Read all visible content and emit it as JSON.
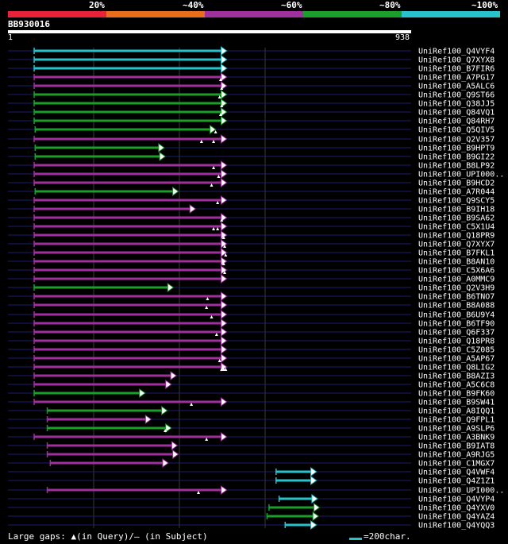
{
  "legend": {
    "labels": [
      "20%",
      "~40%",
      "~60%",
      "~80%",
      "~100%"
    ],
    "colors": [
      "#e8223b",
      "#e86e1c",
      "#a0309e",
      "#1b9e2a",
      "#27c2cc"
    ]
  },
  "query": {
    "id": "BB930016",
    "start": "1",
    "end": "938"
  },
  "footer": {
    "gaps_text": "Large gaps: ▲(in Query)/– (in Subject)",
    "scale_text": "=200char."
  },
  "hits": [
    {
      "label": "UniRef100_Q4VYF4",
      "s": 130,
      "e": 1085,
      "c": "c",
      "g": []
    },
    {
      "label": "UniRef100_Q7XYX8",
      "s": 130,
      "e": 1085,
      "c": "c",
      "g": []
    },
    {
      "label": "UniRef100_B7FIR6",
      "s": 130,
      "e": 1085,
      "c": "c",
      "g": []
    },
    {
      "label": "UniRef100_A7PG17",
      "s": 130,
      "e": 1085,
      "c": "p",
      "g": [
        1055
      ]
    },
    {
      "label": "UniRef100_A5ALC6",
      "s": 130,
      "e": 1085,
      "c": "p",
      "g": [
        1060
      ]
    },
    {
      "label": "UniRef100_Q9ST66",
      "s": 130,
      "e": 1085,
      "c": "g",
      "g": [
        1050
      ]
    },
    {
      "label": "UniRef100_Q38JJ5",
      "s": 130,
      "e": 1085,
      "c": "g",
      "g": [
        1060
      ]
    },
    {
      "label": "UniRef100_Q84VQ1",
      "s": 130,
      "e": 1085,
      "c": "g",
      "g": [
        1055
      ]
    },
    {
      "label": "UniRef100_Q84RH7",
      "s": 130,
      "e": 1085,
      "c": "g",
      "g": []
    },
    {
      "label": "UniRef100_Q5QIV5",
      "s": 135,
      "e": 1030,
      "c": "g",
      "g": [
        1030
      ]
    },
    {
      "label": "UniRef100_Q2V357",
      "s": 130,
      "e": 1085,
      "c": "p",
      "g": [
        960,
        1020
      ]
    },
    {
      "label": "UniRef100_B9HPT9",
      "s": 135,
      "e": 775,
      "c": "g",
      "g": []
    },
    {
      "label": "UniRef100_B9GI22",
      "s": 135,
      "e": 780,
      "c": "g",
      "g": []
    },
    {
      "label": "UniRef100_B8LP92",
      "s": 130,
      "e": 1085,
      "c": "p",
      "g": [
        1020
      ]
    },
    {
      "label": "UniRef100_UPI000..",
      "s": 130,
      "e": 1085,
      "c": "p",
      "g": [
        1045
      ]
    },
    {
      "label": "UniRef100_B9HCD2",
      "s": 130,
      "e": 1085,
      "c": "p",
      "g": [
        1010
      ]
    },
    {
      "label": "UniRef100_A7R044",
      "s": 135,
      "e": 845,
      "c": "g",
      "g": []
    },
    {
      "label": "UniRef100_Q9SCY5",
      "s": 130,
      "e": 1085,
      "c": "p",
      "g": [
        1040
      ]
    },
    {
      "label": "UniRef100_B9IH18",
      "s": 130,
      "e": 930,
      "c": "p",
      "g": []
    },
    {
      "label": "UniRef100_B9SA62",
      "s": 130,
      "e": 1085,
      "c": "p",
      "g": [
        1060
      ]
    },
    {
      "label": "UniRef100_C5X1U4",
      "s": 130,
      "e": 1085,
      "c": "p",
      "g": [
        1020,
        1040
      ]
    },
    {
      "label": "UniRef100_Q18PR9",
      "s": 130,
      "e": 1085,
      "c": "p",
      "g": [
        1070
      ]
    },
    {
      "label": "UniRef100_Q7XYX7",
      "s": 130,
      "e": 1085,
      "c": "p",
      "g": [
        1075
      ]
    },
    {
      "label": "UniRef100_B7FKL1",
      "s": 130,
      "e": 1085,
      "c": "p",
      "g": [
        1080
      ]
    },
    {
      "label": "UniRef100_B8AN10",
      "s": 130,
      "e": 1085,
      "c": "p",
      "g": [
        1070
      ]
    },
    {
      "label": "UniRef100_C5X6A6",
      "s": 130,
      "e": 1085,
      "c": "p",
      "g": [
        1075
      ]
    },
    {
      "label": "UniRef100_A0MMC9",
      "s": 130,
      "e": 1085,
      "c": "p",
      "g": []
    },
    {
      "label": "UniRef100_Q2V3H9",
      "s": 130,
      "e": 820,
      "c": "g",
      "g": []
    },
    {
      "label": "UniRef100_B6TNO7",
      "s": 130,
      "e": 1085,
      "c": "p",
      "g": [
        990
      ]
    },
    {
      "label": "UniRef100_B8A088",
      "s": 130,
      "e": 1085,
      "c": "p",
      "g": [
        985
      ]
    },
    {
      "label": "UniRef100_B6U9Y4",
      "s": 130,
      "e": 1085,
      "c": "p",
      "g": [
        1010
      ]
    },
    {
      "label": "UniRef100_B6TF90",
      "s": 130,
      "e": 1085,
      "c": "p",
      "g": []
    },
    {
      "label": "UniRef100_Q6F337",
      "s": 130,
      "e": 1085,
      "c": "p",
      "g": [
        1035
      ]
    },
    {
      "label": "UniRef100_Q18PR8",
      "s": 130,
      "e": 1085,
      "c": "p",
      "g": []
    },
    {
      "label": "UniRef100_C5Z085",
      "s": 130,
      "e": 1085,
      "c": "p",
      "g": []
    },
    {
      "label": "UniRef100_A5AP67",
      "s": 130,
      "e": 1085,
      "c": "p",
      "g": [
        1050
      ]
    },
    {
      "label": "UniRef100_Q8LIG2",
      "s": 130,
      "e": 1085,
      "c": "p",
      "g": [
        1060,
        1070,
        1080
      ]
    },
    {
      "label": "UniRef100_B8AZI3",
      "s": 130,
      "e": 835,
      "c": "p",
      "g": []
    },
    {
      "label": "UniRef100_A5C6C8",
      "s": 130,
      "e": 810,
      "c": "p",
      "g": []
    },
    {
      "label": "UniRef100_B9FK60",
      "s": 130,
      "e": 680,
      "c": "g",
      "g": []
    },
    {
      "label": "UniRef100_B9SW41",
      "s": 130,
      "e": 1085,
      "c": "p",
      "g": [
        910
      ]
    },
    {
      "label": "UniRef100_A8IQQ1",
      "s": 195,
      "e": 790,
      "c": "g",
      "g": []
    },
    {
      "label": "UniRef100_Q9FPL1",
      "s": 195,
      "e": 710,
      "c": "p",
      "g": []
    },
    {
      "label": "UniRef100_A9SLP6",
      "s": 195,
      "e": 810,
      "c": "g",
      "g": [
        780
      ]
    },
    {
      "label": "UniRef100_A3BNK9",
      "s": 130,
      "e": 1085,
      "c": "p",
      "g": [
        985
      ]
    },
    {
      "label": "UniRef100_B9IAT8",
      "s": 195,
      "e": 840,
      "c": "p",
      "g": []
    },
    {
      "label": "UniRef100_A9RJG5",
      "s": 195,
      "e": 845,
      "c": "p",
      "g": []
    },
    {
      "label": "UniRef100_C1MGX7",
      "s": 210,
      "e": 795,
      "c": "p",
      "g": []
    },
    {
      "label": "UniRef100_Q4VWF4",
      "s": 1330,
      "e": 1530,
      "c": "c",
      "g": []
    },
    {
      "label": "UniRef100_Q4Z1Z1",
      "s": 1330,
      "e": 1530,
      "c": "c",
      "g": []
    },
    {
      "label": "UniRef100_UPI000..",
      "s": 195,
      "e": 1085,
      "c": "p",
      "g": [
        945
      ]
    },
    {
      "label": "UniRef100_Q4VYP4",
      "s": 1345,
      "e": 1535,
      "c": "c",
      "g": []
    },
    {
      "label": "UniRef100_Q4YXV0",
      "s": 1295,
      "e": 1545,
      "c": "g",
      "g": []
    },
    {
      "label": "UniRef100_Q4YAZ4",
      "s": 1285,
      "e": 1540,
      "c": "g",
      "g": []
    },
    {
      "label": "UniRef100_Q4YQQ3",
      "s": 1375,
      "e": 1530,
      "c": "c",
      "g": []
    }
  ]
}
